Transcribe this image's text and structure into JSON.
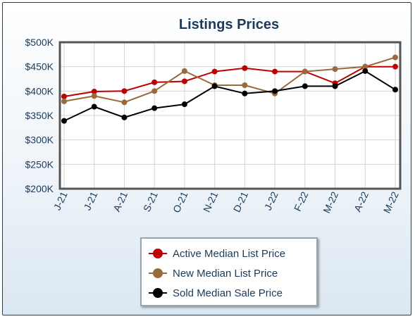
{
  "chart_data": {
    "type": "line",
    "title": "Listings Prices",
    "categories": [
      "J-21",
      "J-21",
      "A-21",
      "S-21",
      "O-21",
      "N-21",
      "D-21",
      "J-22",
      "F-22",
      "M-22",
      "A-22",
      "M-22"
    ],
    "y_tick_labels": [
      "$200K",
      "$250K",
      "$300K",
      "$350K",
      "$400K",
      "$450K",
      "$500K"
    ],
    "ylim": [
      200,
      500
    ],
    "y_unit": "thousands of dollars",
    "grid": true,
    "legend_position": "bottom",
    "series": [
      {
        "name": "Active Median List Price",
        "color": "#c00000",
        "values": [
          389,
          399,
          400,
          418,
          420,
          440,
          447,
          440,
          440,
          416,
          450,
          450
        ]
      },
      {
        "name": "New Median List Price",
        "color": "#9a6a3c",
        "values": [
          379,
          390,
          377,
          400,
          441,
          412,
          412,
          395,
          440,
          445,
          450,
          469
        ]
      },
      {
        "name": "Sold Median Sale Price",
        "color": "#000000",
        "values": [
          339,
          368,
          346,
          365,
          373,
          410,
          395,
          400,
          410,
          410,
          441,
          403
        ]
      }
    ]
  }
}
